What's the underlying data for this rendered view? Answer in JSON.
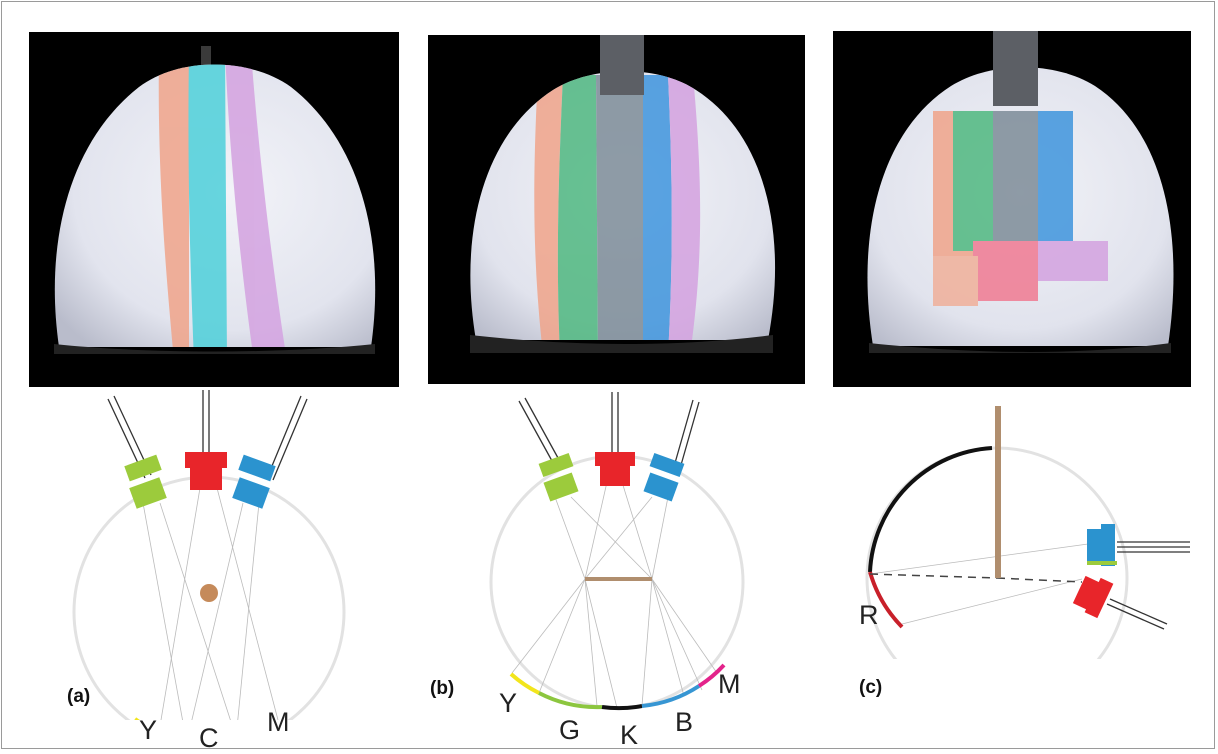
{
  "panels": [
    {
      "id": "a",
      "label": "(a)",
      "zone_labels": [
        "Y",
        "C",
        "M"
      ]
    },
    {
      "id": "b",
      "label": "(b)",
      "zone_labels": [
        "Y",
        "G",
        "K",
        "B",
        "M"
      ]
    },
    {
      "id": "c",
      "label": "(c)",
      "zone_labels": [
        "R"
      ]
    }
  ],
  "colors": {
    "led_green": "#9ccb3c",
    "led_red": "#e8252a",
    "led_blue": "#2b93cf",
    "rim": "#e2e2e2",
    "occluder": "#b08e6e",
    "band_yellow": "#f2e51c",
    "band_cyan": "#56c7d6",
    "band_magenta": "#e3238b",
    "band_green": "#8cc63f",
    "band_black": "#111111",
    "band_blue": "#3796d3",
    "band_red": "#c8202a"
  }
}
